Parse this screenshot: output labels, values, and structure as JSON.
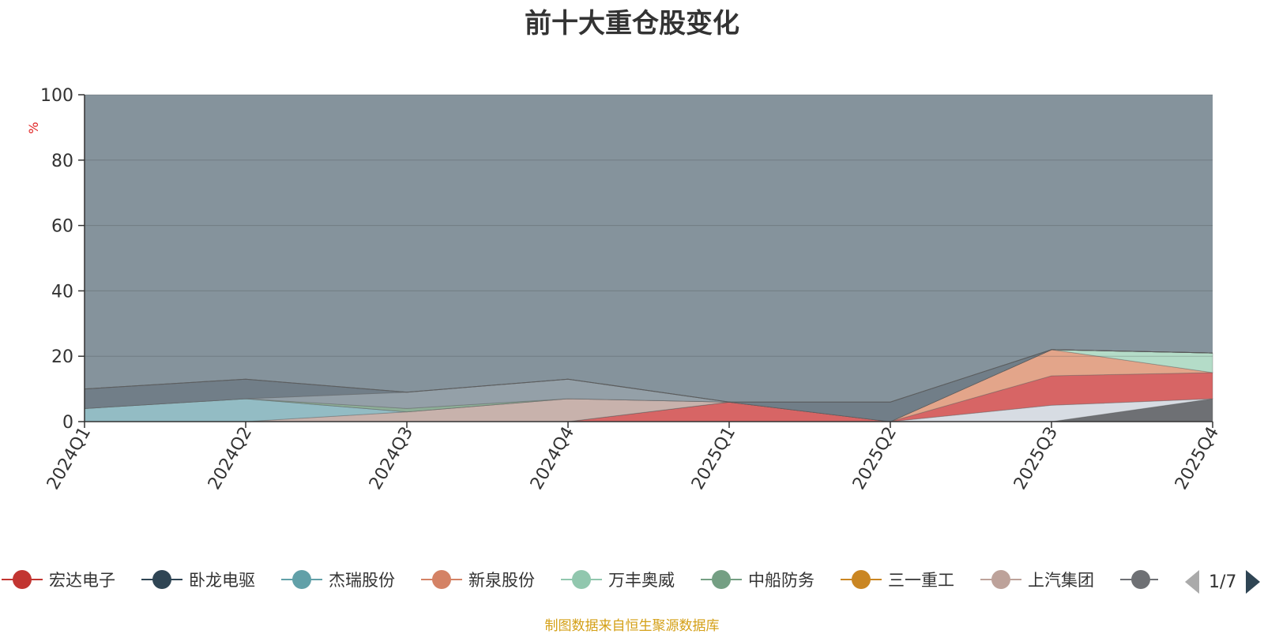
{
  "title": "前十大重仓股变化",
  "source_note": "制图数据来自恒生聚源数据库",
  "pager": {
    "text": "1/7"
  },
  "chart_data": {
    "type": "area",
    "stacked": true,
    "title": "前十大重仓股变化",
    "ylabel": "%",
    "ylim": [
      0,
      100
    ],
    "yticks": [
      0,
      20,
      40,
      60,
      80,
      100
    ],
    "grid": true,
    "legend_position": "bottom",
    "categories": [
      "2024Q1",
      "2024Q2",
      "2024Q3",
      "2024Q4",
      "2025Q1",
      "2025Q2",
      "2025Q3",
      "2025Q4"
    ],
    "layer_colors": [
      "#6e7074",
      "#d7dce3",
      "#d76565",
      "#e3a58a",
      "#b4dcc8",
      "#c8b2ac",
      "#93bcc4",
      "#e0ad5a",
      "#8eaf98",
      "#94a0a8",
      "#717e88",
      "#a0a3a8",
      "#d9c2bc",
      "#c7cad0",
      "#8a959e"
    ],
    "bands": [
      [
        0,
        0,
        0,
        0,
        0,
        0,
        0,
        7
      ],
      [
        0,
        0,
        0,
        0,
        0,
        0,
        5,
        0
      ],
      [
        0,
        0,
        0,
        0,
        6,
        0,
        9,
        8
      ],
      [
        0,
        0,
        0,
        0,
        0,
        0,
        8,
        0
      ],
      [
        0,
        0,
        0,
        0,
        0,
        0,
        0,
        6
      ],
      [
        0,
        0,
        3,
        7,
        0,
        0,
        0,
        0
      ],
      [
        4,
        7,
        0,
        0,
        0,
        0,
        0,
        0
      ],
      [
        0,
        0,
        0,
        0,
        0,
        0,
        0,
        0
      ],
      [
        0,
        0,
        1,
        0,
        0,
        0,
        0,
        0
      ],
      [
        0,
        0,
        5,
        6,
        0,
        0,
        0,
        0
      ],
      [
        6,
        6,
        0,
        0,
        0,
        6,
        0,
        0
      ],
      [
        0,
        0,
        0,
        0,
        0,
        0,
        0,
        0
      ],
      [
        0,
        0,
        0,
        0,
        0,
        0,
        0,
        0
      ],
      [
        0,
        0,
        0,
        0,
        0,
        0,
        0,
        0
      ],
      [
        0,
        0,
        0,
        0,
        0,
        0,
        0,
        0
      ]
    ],
    "series_legend": [
      {
        "name": "宏达电子",
        "color": "#c23531"
      },
      {
        "name": "卧龙电驱",
        "color": "#2f4554"
      },
      {
        "name": "杰瑞股份",
        "color": "#61a0a8"
      },
      {
        "name": "新泉股份",
        "color": "#d48265"
      },
      {
        "name": "万丰奥威",
        "color": "#91c7ae"
      },
      {
        "name": "中船防务",
        "color": "#749f83"
      },
      {
        "name": "三一重工",
        "color": "#ca8622"
      },
      {
        "name": "上汽集团",
        "color": "#bda29a"
      },
      {
        "name": "",
        "color": "#6e7074"
      }
    ]
  }
}
